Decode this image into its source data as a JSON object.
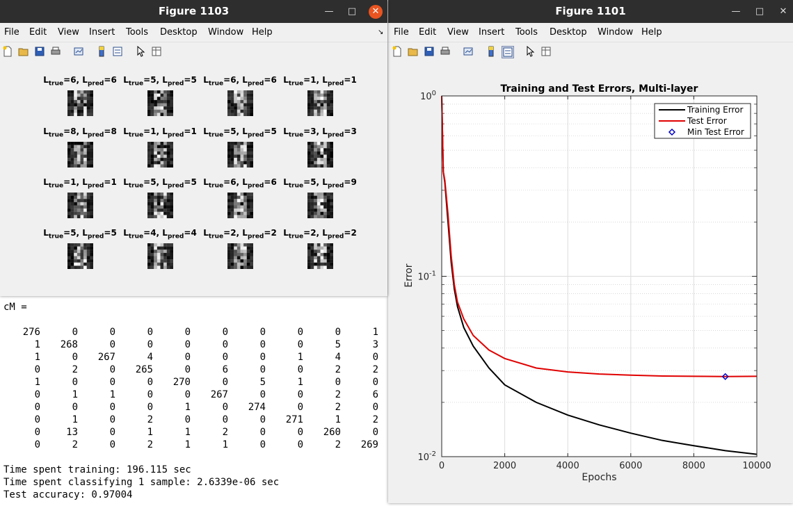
{
  "console": {
    "cm_header": "cM =",
    "cm_matrix": [
      [
        276,
        0,
        0,
        0,
        0,
        0,
        0,
        0,
        0,
        1
      ],
      [
        1,
        268,
        0,
        0,
        0,
        0,
        0,
        0,
        5,
        3
      ],
      [
        1,
        0,
        267,
        4,
        0,
        0,
        0,
        1,
        4,
        0
      ],
      [
        0,
        2,
        0,
        265,
        0,
        6,
        0,
        0,
        2,
        2
      ],
      [
        1,
        0,
        0,
        0,
        270,
        0,
        5,
        1,
        0,
        0
      ],
      [
        0,
        1,
        1,
        0,
        0,
        267,
        0,
        0,
        2,
        6
      ],
      [
        0,
        0,
        0,
        0,
        1,
        0,
        274,
        0,
        2,
        0
      ],
      [
        0,
        1,
        0,
        2,
        0,
        0,
        0,
        271,
        1,
        2
      ],
      [
        0,
        13,
        0,
        1,
        1,
        2,
        0,
        0,
        260,
        0
      ],
      [
        0,
        2,
        0,
        2,
        1,
        1,
        0,
        0,
        2,
        269
      ]
    ],
    "line1": "Time spent training: 196.115 sec",
    "line2": "Time spent classifying 1 sample: 2.6339e-06 sec",
    "line3": "Test accuracy: 0.97004"
  },
  "menu_items": [
    "File",
    "Edit",
    "View",
    "Insert",
    "Tools",
    "Desktop",
    "Window",
    "Help"
  ],
  "fig1103": {
    "title": "Figure 1103",
    "digits": [
      [
        "6",
        "6"
      ],
      [
        "5",
        "5"
      ],
      [
        "6",
        "6"
      ],
      [
        "1",
        "1"
      ],
      [
        "8",
        "8"
      ],
      [
        "1",
        "1"
      ],
      [
        "5",
        "5"
      ],
      [
        "3",
        "3"
      ],
      [
        "1",
        "1"
      ],
      [
        "5",
        "5"
      ],
      [
        "6",
        "6"
      ],
      [
        "5",
        "9"
      ],
      [
        "5",
        "5"
      ],
      [
        "4",
        "4"
      ],
      [
        "2",
        "2"
      ],
      [
        "2",
        "2"
      ]
    ]
  },
  "fig1101": {
    "title": "Figure 1101",
    "chart_data": {
      "type": "line",
      "title": "Training and Test Errors, Multi-layer",
      "xlabel": "Epochs",
      "ylabel": "Error",
      "xlim": [
        0,
        10000
      ],
      "ylim": [
        0.01,
        1
      ],
      "yscale": "log",
      "grid": true,
      "legend_position": "top-right",
      "x_ticks": [
        "0",
        "2000",
        "4000",
        "6000",
        "8000",
        "10000"
      ],
      "y_ticks": [
        {
          "base": "10",
          "exp": "-2"
        },
        {
          "base": "10",
          "exp": "-1"
        },
        {
          "base": "10",
          "exp": "0"
        }
      ],
      "series": [
        {
          "name": "Training Error",
          "color": "#000000",
          "x": [
            0,
            50,
            100,
            200,
            300,
            400,
            500,
            700,
            1000,
            1500,
            2000,
            3000,
            4000,
            5000,
            6000,
            7000,
            8000,
            9000,
            10000
          ],
          "y": [
            1.0,
            0.38,
            0.33,
            0.2,
            0.12,
            0.085,
            0.068,
            0.052,
            0.041,
            0.031,
            0.025,
            0.02,
            0.017,
            0.015,
            0.0135,
            0.0123,
            0.0115,
            0.0108,
            0.0103
          ]
        },
        {
          "name": "Test Error",
          "color": "#e00000",
          "x": [
            0,
            50,
            100,
            200,
            300,
            400,
            500,
            700,
            1000,
            1500,
            2000,
            3000,
            4000,
            5000,
            6000,
            7000,
            8000,
            9000,
            10000
          ],
          "y": [
            1.0,
            0.38,
            0.34,
            0.22,
            0.13,
            0.09,
            0.072,
            0.058,
            0.047,
            0.039,
            0.035,
            0.031,
            0.0295,
            0.0287,
            0.0283,
            0.028,
            0.0279,
            0.0278,
            0.0279
          ]
        },
        {
          "name": "Min Test Error",
          "color": "#0000c0",
          "marker": "diamond",
          "x": [
            9000
          ],
          "y": [
            0.0278
          ]
        }
      ]
    }
  }
}
